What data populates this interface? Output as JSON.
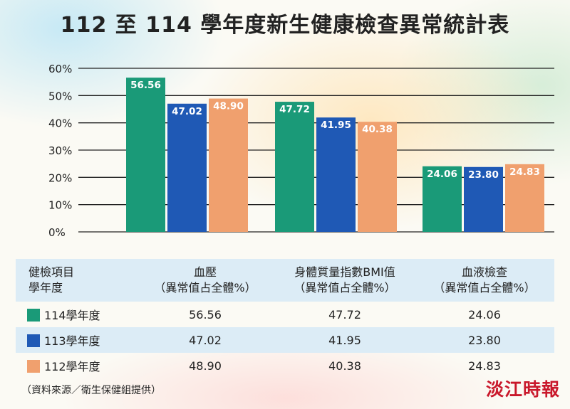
{
  "title": "112 至 114 學年度新生健康檢查異常統計表",
  "chart_data": {
    "type": "bar",
    "title": "112 至 114 學年度新生健康檢查異常統計表",
    "categories": [
      "血壓",
      "身體質量指數BMI值",
      "血液檢查"
    ],
    "series": [
      {
        "name": "114學年度",
        "color": "#1a9a78",
        "values": [
          56.56,
          47.72,
          24.06
        ],
        "labels": [
          "56.56",
          "47.72",
          "24.06"
        ]
      },
      {
        "name": "113學年度",
        "color": "#1f59b5",
        "values": [
          47.02,
          41.95,
          23.8
        ],
        "labels": [
          "47.02",
          "41.95",
          "23.80"
        ]
      },
      {
        "name": "112學年度",
        "color": "#f0a06e",
        "values": [
          48.9,
          40.38,
          24.83
        ],
        "labels": [
          "48.90",
          "40.38",
          "24.83"
        ]
      }
    ],
    "ylim": [
      0,
      60
    ],
    "yticks": [
      0,
      10,
      20,
      30,
      40,
      50,
      60
    ],
    "yticklabels": [
      "0%",
      "10%",
      "20%",
      "30%",
      "40%",
      "50%",
      "60%"
    ],
    "grid": true,
    "xlabel": "",
    "ylabel": ""
  },
  "table": {
    "header_line1": "健檢項目",
    "header_line2": "學年度",
    "columns": [
      {
        "name": "血壓",
        "sub": "（異常值占全體%）"
      },
      {
        "name": "身體質量指數BMI值",
        "sub": "（異常值占全體%）"
      },
      {
        "name": "血液檢查",
        "sub": "（異常值占全體%）"
      }
    ],
    "rows": [
      {
        "year": "114學年度",
        "color": "#1a9a78",
        "values": [
          "56.56",
          "47.72",
          "24.06"
        ]
      },
      {
        "year": "113學年度",
        "color": "#1f59b5",
        "values": [
          "47.02",
          "41.95",
          "23.80"
        ]
      },
      {
        "year": "112學年度",
        "color": "#f0a06e",
        "values": [
          "48.90",
          "40.38",
          "24.83"
        ]
      }
    ]
  },
  "source_note": "（資料來源／衛生保健組提供）",
  "brand": "淡江時報"
}
